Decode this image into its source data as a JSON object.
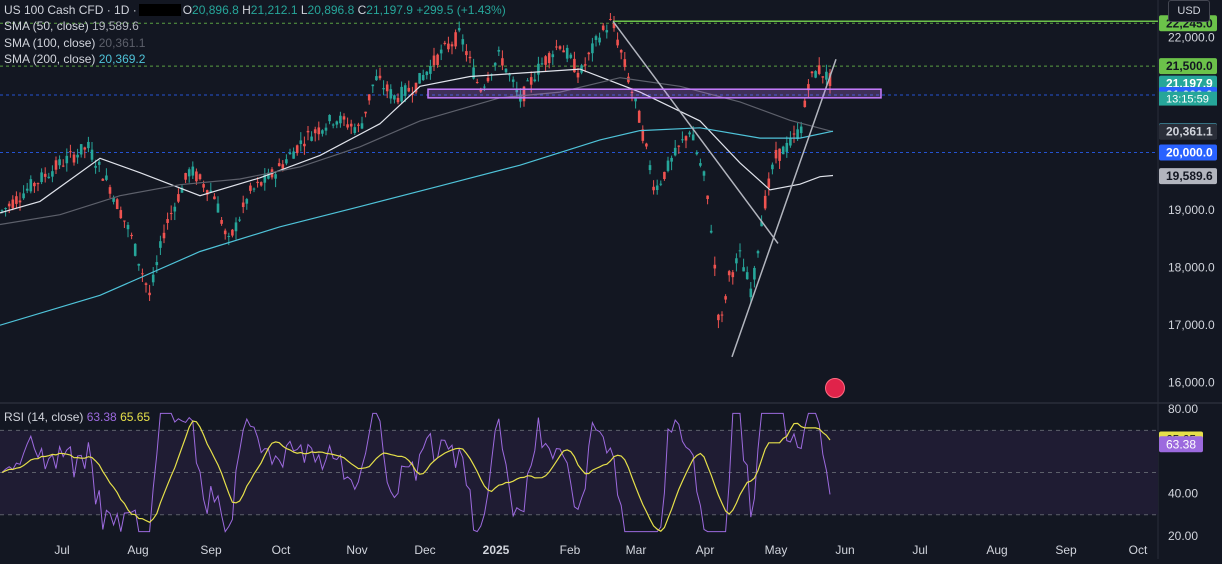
{
  "header": {
    "symbol": "US 100 Cash CFD · 1D ·",
    "o_label": "O",
    "o_value": "20,896.8",
    "h_label": "H",
    "h_value": "21,212.1",
    "l_label": "L",
    "l_value": "20,896.8",
    "c_label": "C",
    "c_value": "21,197.9",
    "change": "+299.5 (+1.43%)"
  },
  "indicators": [
    {
      "label": "SMA (50, close)",
      "value": "19,589.6",
      "color": "#e0e3eb"
    },
    {
      "label": "SMA (100, close)",
      "value": "20,361.1",
      "color": "#5d606b"
    },
    {
      "label": "SMA (200, close)",
      "value": "20,369.2",
      "color": "#4fc3d9"
    }
  ],
  "currency": "USD",
  "rsi": {
    "label": "RSI (14, close)",
    "value": "63.38",
    "ma_value": "65.65",
    "color": "#9c6ade",
    "ma_color": "#e6e04a"
  },
  "chart_data": [
    {
      "type": "candlestick",
      "title": "US 100 Cash CFD · 1D",
      "x_labels": [
        "Jul",
        "Aug",
        "Sep",
        "Oct",
        "Nov",
        "Dec",
        "2025",
        "Feb",
        "Mar",
        "Apr",
        "May",
        "Jun",
        "Jul",
        "Aug",
        "Sep",
        "Oct"
      ],
      "y_ticks": [
        "16,000.0",
        "17,000.0",
        "18,000.0",
        "19,000.0",
        "22,000.0"
      ],
      "ylim": [
        15700,
        22650
      ],
      "price_labels": [
        {
          "value": 22245.0,
          "text": "22,245.0",
          "bg": "#6cc24a",
          "fg": "#131722"
        },
        {
          "value": 21500.0,
          "text": "21,500.0",
          "bg": "#6cc24a",
          "fg": "#131722"
        },
        {
          "value": 21197.9,
          "text": "21,197.9",
          "bg": "#26a69a",
          "fg": "#ffffff"
        },
        {
          "value": 21000.0,
          "text": "21,000.0",
          "bg": "#2962ff",
          "fg": "#ffffff"
        },
        {
          "value": 20369.2,
          "text": "20,369.2",
          "bg": "#4fc3d9",
          "fg": "#131722"
        },
        {
          "value": 20361.1,
          "text": "20,361.1",
          "bg": "#2a2e39",
          "fg": "#d1d4dc"
        },
        {
          "value": 20000.0,
          "text": "20,000.0",
          "bg": "#2962ff",
          "fg": "#ffffff"
        },
        {
          "value": 19589.6,
          "text": "19,589.6",
          "bg": "#b2b5be",
          "fg": "#131722"
        }
      ],
      "countdown": "13:15:59",
      "series": [
        {
          "name": "SMA (50, close)",
          "color": "#e0e3eb",
          "points": [
            [
              0,
              18950
            ],
            [
              40,
              19150
            ],
            [
              100,
              19900
            ],
            [
              140,
              19650
            ],
            [
              200,
              19250
            ],
            [
              260,
              19560
            ],
            [
              320,
              19950
            ],
            [
              380,
              20500
            ],
            [
              420,
              21150
            ],
            [
              470,
              21320
            ],
            [
              520,
              21380
            ],
            [
              580,
              21450
            ],
            [
              640,
              21050
            ],
            [
              700,
              20550
            ],
            [
              740,
              19820
            ],
            [
              770,
              19350
            ],
            [
              800,
              19450
            ],
            [
              820,
              19580
            ],
            [
              833,
              19600
            ]
          ]
        },
        {
          "name": "SMA (100, close)",
          "color": "#5d606b",
          "points": [
            [
              0,
              18750
            ],
            [
              60,
              18920
            ],
            [
              120,
              19250
            ],
            [
              180,
              19440
            ],
            [
              240,
              19540
            ],
            [
              300,
              19750
            ],
            [
              360,
              20100
            ],
            [
              420,
              20550
            ],
            [
              500,
              20950
            ],
            [
              560,
              21050
            ],
            [
              620,
              21300
            ],
            [
              680,
              21150
            ],
            [
              740,
              20880
            ],
            [
              790,
              20560
            ],
            [
              833,
              20362
            ]
          ]
        },
        {
          "name": "SMA (200, close)",
          "color": "#4fc3d9",
          "points": [
            [
              0,
              17000
            ],
            [
              100,
              17520
            ],
            [
              200,
              18280
            ],
            [
              280,
              18710
            ],
            [
              360,
              19060
            ],
            [
              440,
              19420
            ],
            [
              520,
              19780
            ],
            [
              600,
              20220
            ],
            [
              640,
              20380
            ],
            [
              700,
              20430
            ],
            [
              760,
              20250
            ],
            [
              800,
              20250
            ],
            [
              833,
              20370
            ]
          ]
        }
      ],
      "trendlines": [
        {
          "from": [
            613,
            22280
          ],
          "to": [
            1158,
            22280
          ],
          "color": "#6cc24a"
        },
        {
          "from": [
            613,
            22280
          ],
          "to": [
            778,
            18420
          ],
          "color": "#b2b5be"
        },
        {
          "from": [
            732,
            16450
          ],
          "to": [
            836,
            21620
          ],
          "color": "#b2b5be"
        }
      ],
      "zone": {
        "from": [
          428,
          20950
        ],
        "to": [
          881,
          21100
        ],
        "color": "#c77dff"
      },
      "h_dashed": [
        22245.0,
        21500.0,
        21000.0,
        20000.0
      ]
    },
    {
      "type": "line",
      "title": "RSI (14, close)",
      "y_ticks": [
        "20.00",
        "40.00",
        "80.00"
      ],
      "ylim": [
        18,
        82
      ],
      "bands": [
        70,
        50,
        30
      ],
      "price_labels": [
        {
          "value": 65.65,
          "text": "65.65",
          "bg": "#e6e04a",
          "fg": "#131722"
        },
        {
          "value": 63.38,
          "text": "63.38",
          "bg": "#9c6ade",
          "fg": "#ffffff"
        }
      ]
    }
  ]
}
